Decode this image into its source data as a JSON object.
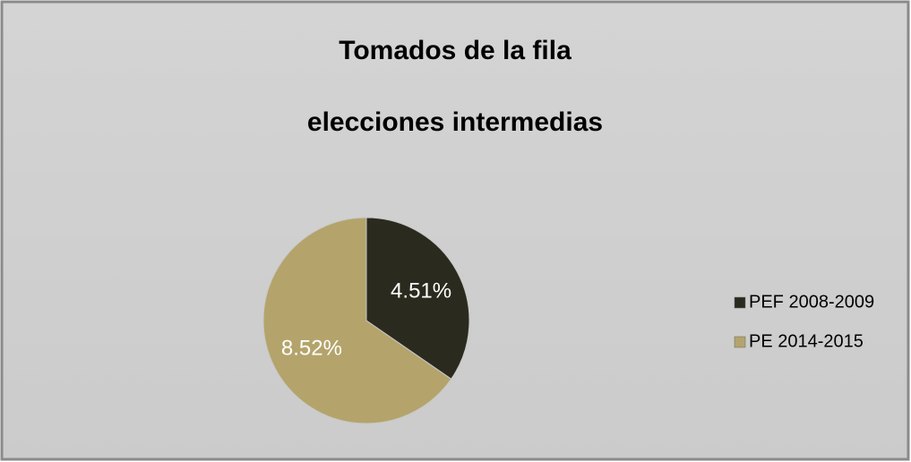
{
  "chart_data": {
    "type": "pie",
    "title": [
      "Tomados de la fila",
      "elecciones intermedias"
    ],
    "categories": [
      "PEF 2008-2009",
      "PE 2014-2015"
    ],
    "values": [
      4.51,
      8.52
    ],
    "value_labels": [
      "4.51%",
      "8.52%"
    ],
    "colors": [
      "#2b2a1e",
      "#b4a46b"
    ],
    "legend": "right"
  }
}
